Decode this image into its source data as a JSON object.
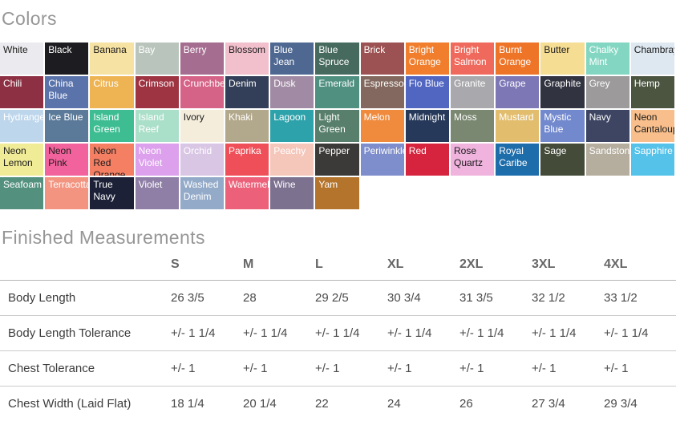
{
  "colors_section": {
    "title": "Colors",
    "swatches": [
      {
        "name": "White",
        "bg": "#ebebef",
        "text": "#1b1b1b"
      },
      {
        "name": "Black",
        "bg": "#1d1d21",
        "text": "#ffffff"
      },
      {
        "name": "Banana",
        "bg": "#f6e2a2",
        "text": "#1b1b1b"
      },
      {
        "name": "Bay",
        "bg": "#b9c5bc",
        "text": "#ffffff"
      },
      {
        "name": "Berry",
        "bg": "#a56d90",
        "text": "#ffffff"
      },
      {
        "name": "Blossom",
        "bg": "#f2c0cd",
        "text": "#1b1b1b"
      },
      {
        "name": "Blue Jean",
        "bg": "#4f6892",
        "text": "#ffffff"
      },
      {
        "name": "Blue Spruce",
        "bg": "#476a5f",
        "text": "#ffffff"
      },
      {
        "name": "Brick",
        "bg": "#9c5252",
        "text": "#ffffff"
      },
      {
        "name": "Bright Orange",
        "bg": "#f07e2d",
        "text": "#ffffff"
      },
      {
        "name": "Bright Salmon",
        "bg": "#ef6a5d",
        "text": "#ffffff"
      },
      {
        "name": "Burnt Orange",
        "bg": "#ee7428",
        "text": "#ffffff"
      },
      {
        "name": "Butter",
        "bg": "#f6dd94",
        "text": "#1b1b1b"
      },
      {
        "name": "Chalky Mint",
        "bg": "#83d7c2",
        "text": "#ffffff"
      },
      {
        "name": "Chambray",
        "bg": "#dee8f0",
        "text": "#1b1b1b"
      },
      {
        "name": "Chili",
        "bg": "#8e3044",
        "text": "#ffffff"
      },
      {
        "name": "China Blue",
        "bg": "#5a73ab",
        "text": "#ffffff"
      },
      {
        "name": "Citrus",
        "bg": "#eeb454",
        "text": "#ffffff"
      },
      {
        "name": "Crimson",
        "bg": "#9e3342",
        "text": "#ffffff"
      },
      {
        "name": "Crunchberry",
        "bg": "#d56287",
        "text": "#ffffff"
      },
      {
        "name": "Denim",
        "bg": "#333e58",
        "text": "#ffffff"
      },
      {
        "name": "Dusk",
        "bg": "#a18ba4",
        "text": "#ffffff"
      },
      {
        "name": "Emerald",
        "bg": "#4f9080",
        "text": "#ffffff"
      },
      {
        "name": "Espresso",
        "bg": "#82685e",
        "text": "#ffffff"
      },
      {
        "name": "Flo Blue",
        "bg": "#5166c1",
        "text": "#ffffff"
      },
      {
        "name": "Granite",
        "bg": "#a9a9ad",
        "text": "#ffffff"
      },
      {
        "name": "Grape",
        "bg": "#7d77b6",
        "text": "#ffffff"
      },
      {
        "name": "Graphite",
        "bg": "#313340",
        "text": "#ffffff"
      },
      {
        "name": "Grey",
        "bg": "#9c9a9b",
        "text": "#ffffff"
      },
      {
        "name": "Hemp",
        "bg": "#4b5540",
        "text": "#ffffff"
      },
      {
        "name": "Hydrangea",
        "bg": "#bed6ec",
        "text": "#ffffff"
      },
      {
        "name": "Ice Blue",
        "bg": "#5b7a99",
        "text": "#ffffff"
      },
      {
        "name": "Island Green",
        "bg": "#3fbd92",
        "text": "#ffffff"
      },
      {
        "name": "Island Reef",
        "bg": "#aadfc9",
        "text": "#ffffff"
      },
      {
        "name": "Ivory",
        "bg": "#f4eddc",
        "text": "#1b1b1b"
      },
      {
        "name": "Khaki",
        "bg": "#b2a88b",
        "text": "#ffffff"
      },
      {
        "name": "Lagoon",
        "bg": "#2ea2ab",
        "text": "#ffffff"
      },
      {
        "name": "Light Green",
        "bg": "#587f6b",
        "text": "#ffffff"
      },
      {
        "name": "Melon",
        "bg": "#f08a3c",
        "text": "#ffffff"
      },
      {
        "name": "Midnight",
        "bg": "#27395a",
        "text": "#ffffff"
      },
      {
        "name": "Moss",
        "bg": "#7a8871",
        "text": "#ffffff"
      },
      {
        "name": "Mustard",
        "bg": "#e2bd6e",
        "text": "#ffffff"
      },
      {
        "name": "Mystic Blue",
        "bg": "#7389ce",
        "text": "#ffffff"
      },
      {
        "name": "Navy",
        "bg": "#3d4563",
        "text": "#ffffff"
      },
      {
        "name": "Neon Cantaloupe",
        "bg": "#f8bf8c",
        "text": "#1b1b1b"
      },
      {
        "name": "Neon Lemon",
        "bg": "#f0eb96",
        "text": "#1b1b1b"
      },
      {
        "name": "Neon Pink",
        "bg": "#f2629c",
        "text": "#1b1b1b"
      },
      {
        "name": "Neon Red Orange",
        "bg": "#f57f63",
        "text": "#1b1b1b"
      },
      {
        "name": "Neon Violet",
        "bg": "#dca0ec",
        "text": "#ffffff"
      },
      {
        "name": "Orchid",
        "bg": "#d9c6e4",
        "text": "#ffffff"
      },
      {
        "name": "Paprika",
        "bg": "#ef4f58",
        "text": "#ffffff"
      },
      {
        "name": "Peachy",
        "bg": "#f5c6ba",
        "text": "#ffffff"
      },
      {
        "name": "Pepper",
        "bg": "#3b3a38",
        "text": "#ffffff"
      },
      {
        "name": "Periwinkle",
        "bg": "#7e8dcb",
        "text": "#ffffff"
      },
      {
        "name": "Red",
        "bg": "#d7243e",
        "text": "#ffffff"
      },
      {
        "name": "Rose Quartz",
        "bg": "#efb3dd",
        "text": "#1b1b1b"
      },
      {
        "name": "Royal Caribe",
        "bg": "#1e6dab",
        "text": "#ffffff"
      },
      {
        "name": "Sage",
        "bg": "#444b39",
        "text": "#ffffff"
      },
      {
        "name": "Sandstone",
        "bg": "#b5ae9f",
        "text": "#ffffff"
      },
      {
        "name": "Sapphire",
        "bg": "#55c2e9",
        "text": "#ffffff"
      },
      {
        "name": "Seafoam",
        "bg": "#53917e",
        "text": "#ffffff"
      },
      {
        "name": "Terracotta",
        "bg": "#f29480",
        "text": "#ffffff"
      },
      {
        "name": "True Navy",
        "bg": "#1c2137",
        "text": "#ffffff"
      },
      {
        "name": "Violet",
        "bg": "#8f7fa6",
        "text": "#ffffff"
      },
      {
        "name": "Washed Denim",
        "bg": "#93aac9",
        "text": "#ffffff"
      },
      {
        "name": "Watermelon",
        "bg": "#ec6079",
        "text": "#ffffff"
      },
      {
        "name": "Wine",
        "bg": "#7d7190",
        "text": "#ffffff"
      },
      {
        "name": "Yam",
        "bg": "#b5742c",
        "text": "#ffffff"
      }
    ]
  },
  "measurements_section": {
    "title": "Finished Measurements",
    "columns": [
      "S",
      "M",
      "L",
      "XL",
      "2XL",
      "3XL",
      "4XL"
    ],
    "rows": [
      {
        "label": "Body Length",
        "values": [
          "26 3/5",
          "28",
          "29 2/5",
          "30 3/4",
          "31 3/5",
          "32 1/2",
          "33 1/2"
        ]
      },
      {
        "label": "Body Length Tolerance",
        "values": [
          "+/- 1 1/4",
          "+/- 1 1/4",
          "+/- 1 1/4",
          "+/- 1 1/4",
          "+/- 1 1/4",
          "+/- 1 1/4",
          "+/- 1 1/4"
        ]
      },
      {
        "label": "Chest Tolerance",
        "values": [
          "+/- 1",
          "+/- 1",
          "+/- 1",
          "+/- 1",
          "+/- 1",
          "+/- 1",
          "+/- 1"
        ]
      },
      {
        "label": "Chest Width (Laid Flat)",
        "values": [
          "18 1/4",
          "20 1/4",
          "22",
          "24",
          "26",
          "27 3/4",
          "29 3/4"
        ]
      }
    ]
  },
  "theme": {
    "heading_color": "#969696",
    "table_text_color": "#4a4a4a",
    "divider_color": "#cbcbcb"
  }
}
